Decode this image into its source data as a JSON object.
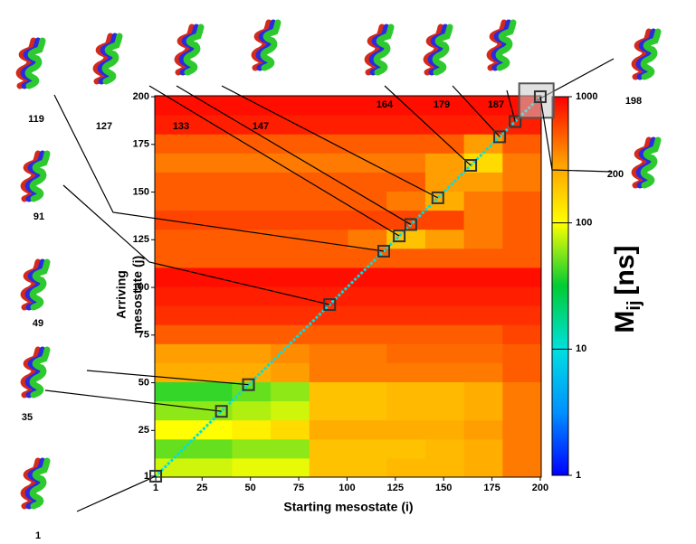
{
  "chart_data": {
    "type": "heatmap",
    "x_label": "Starting mesostate (i)",
    "y_label": [
      "Arriving",
      "mesostate (j)"
    ],
    "xlim": [
      0.5,
      200.5
    ],
    "ylim": [
      0.5,
      200.5
    ],
    "xticks": [
      1,
      25,
      50,
      75,
      100,
      125,
      150,
      175,
      200
    ],
    "yticks": [
      1,
      25,
      50,
      75,
      100,
      125,
      150,
      175,
      200
    ],
    "x_bins": [
      0.5,
      20.5,
      40.5,
      60.5,
      80.5,
      100.5,
      120.5,
      140.5,
      160.5,
      180.5,
      200.5
    ],
    "y_bins": [
      0.5,
      10.5,
      20.5,
      30.5,
      40.5,
      50.5,
      60.5,
      70.5,
      80.5,
      90.5,
      100.5,
      110.5,
      120.5,
      130.5,
      140.5,
      150.5,
      160.5,
      170.5,
      180.5,
      190.5,
      200.5
    ],
    "values": [
      [
        80,
        80,
        90,
        90,
        200,
        200,
        220,
        220,
        250,
        400
      ],
      [
        50,
        50,
        60,
        60,
        200,
        200,
        200,
        220,
        250,
        400
      ],
      [
        100,
        100,
        120,
        150,
        250,
        250,
        250,
        250,
        300,
        400
      ],
      [
        60,
        60,
        70,
        80,
        200,
        200,
        220,
        220,
        250,
        400
      ],
      [
        40,
        40,
        50,
        60,
        200,
        200,
        220,
        220,
        250,
        400
      ],
      [
        250,
        250,
        250,
        300,
        400,
        400,
        400,
        400,
        400,
        500
      ],
      [
        300,
        300,
        300,
        350,
        400,
        400,
        450,
        450,
        450,
        500
      ],
      [
        500,
        500,
        500,
        500,
        500,
        500,
        500,
        500,
        500,
        600
      ],
      [
        700,
        700,
        700,
        700,
        700,
        700,
        700,
        700,
        700,
        700
      ],
      [
        800,
        800,
        800,
        800,
        800,
        800,
        800,
        800,
        800,
        800
      ],
      [
        900,
        900,
        900,
        900,
        900,
        900,
        900,
        900,
        900,
        900
      ],
      [
        500,
        500,
        500,
        500,
        500,
        500,
        500,
        500,
        500,
        500
      ],
      [
        500,
        500,
        500,
        500,
        500,
        400,
        200,
        300,
        400,
        500
      ],
      [
        600,
        600,
        600,
        600,
        600,
        600,
        600,
        600,
        400,
        500
      ],
      [
        500,
        500,
        500,
        500,
        500,
        500,
        400,
        250,
        400,
        500
      ],
      [
        500,
        500,
        500,
        500,
        500,
        500,
        500,
        300,
        300,
        400
      ],
      [
        400,
        400,
        400,
        400,
        400,
        400,
        400,
        300,
        150,
        400
      ],
      [
        500,
        500,
        500,
        500,
        500,
        500,
        500,
        500,
        300,
        500
      ],
      [
        800,
        800,
        800,
        800,
        800,
        800,
        800,
        800,
        800,
        800
      ],
      [
        900,
        900,
        900,
        900,
        900,
        900,
        900,
        900,
        900,
        900
      ]
    ],
    "diagonal": 10,
    "colorbar": {
      "lim": [
        1,
        1000
      ],
      "ticks": [
        1,
        10,
        100,
        1000
      ],
      "log": true,
      "colors": [
        "#0000ff",
        "#0090ff",
        "#00e0e0",
        "#00cc33",
        "#ffff00",
        "#ff9900",
        "#ff0000"
      ],
      "label": {
        "main": "M",
        "sub": "ij",
        "unit": "[ns]"
      }
    },
    "highlighted": [
      1,
      35,
      49,
      91,
      119,
      127,
      133,
      147,
      164,
      179,
      187,
      198,
      200
    ]
  }
}
